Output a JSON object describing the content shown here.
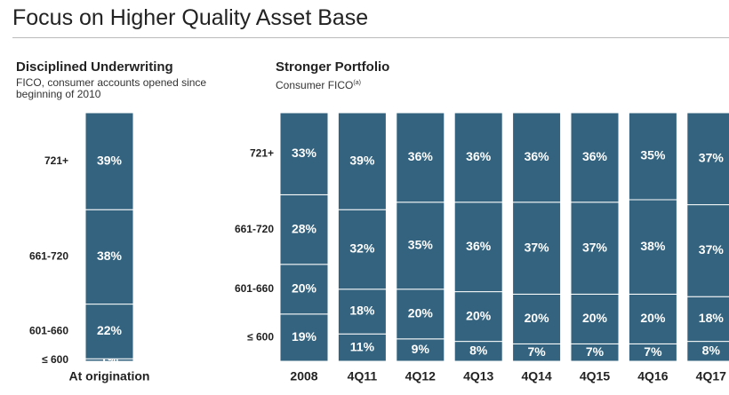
{
  "slide_title": "Focus on Higher Quality Asset Base",
  "chart_data": [
    {
      "type": "stacked-bar",
      "title": "Disciplined Underwriting",
      "subtitle": "FICO, consumer accounts opened since beginning of 2010",
      "categories": [
        "At origination"
      ],
      "ylim": [
        0,
        100
      ],
      "series": [
        {
          "name": "≤ 600",
          "color": "#33637e",
          "values": [
            1
          ],
          "value_labels": [
            "1%"
          ]
        },
        {
          "name": "601-660",
          "color": "#33637e",
          "values": [
            22
          ],
          "value_labels": [
            "22%"
          ]
        },
        {
          "name": "661-720",
          "color": "#33637e",
          "values": [
            38
          ],
          "value_labels": [
            "38%"
          ]
        },
        {
          "name": "721+",
          "color": "#33637e",
          "values": [
            39
          ],
          "value_labels": [
            "39%"
          ]
        }
      ]
    },
    {
      "type": "stacked-bar",
      "title": "Stronger Portfolio",
      "subtitle": "Consumer FICO",
      "subtitle_note": "(a)",
      "categories": [
        "2008",
        "4Q11",
        "4Q12",
        "4Q13",
        "4Q14",
        "4Q15",
        "4Q16",
        "4Q17"
      ],
      "ylim": [
        0,
        100
      ],
      "series": [
        {
          "name": "≤ 600",
          "color": "#33637e",
          "values": [
            19,
            11,
            9,
            8,
            7,
            7,
            7,
            8
          ],
          "value_labels": [
            "19%",
            "11%",
            "9%",
            "8%",
            "7%",
            "7%",
            "7%",
            "8%"
          ]
        },
        {
          "name": "601-660",
          "color": "#33637e",
          "values": [
            20,
            18,
            20,
            20,
            20,
            20,
            20,
            18
          ],
          "value_labels": [
            "20%",
            "18%",
            "20%",
            "20%",
            "20%",
            "20%",
            "20%",
            "18%"
          ]
        },
        {
          "name": "661-720",
          "color": "#33637e",
          "values": [
            28,
            32,
            35,
            36,
            37,
            37,
            38,
            37
          ],
          "value_labels": [
            "28%",
            "32%",
            "35%",
            "36%",
            "37%",
            "37%",
            "38%",
            "37%"
          ]
        },
        {
          "name": "721+",
          "color": "#33637e",
          "values": [
            33,
            39,
            36,
            36,
            36,
            36,
            35,
            37
          ],
          "value_labels": [
            "33%",
            "39%",
            "36%",
            "36%",
            "36%",
            "36%",
            "35%",
            "37%"
          ]
        }
      ]
    }
  ]
}
